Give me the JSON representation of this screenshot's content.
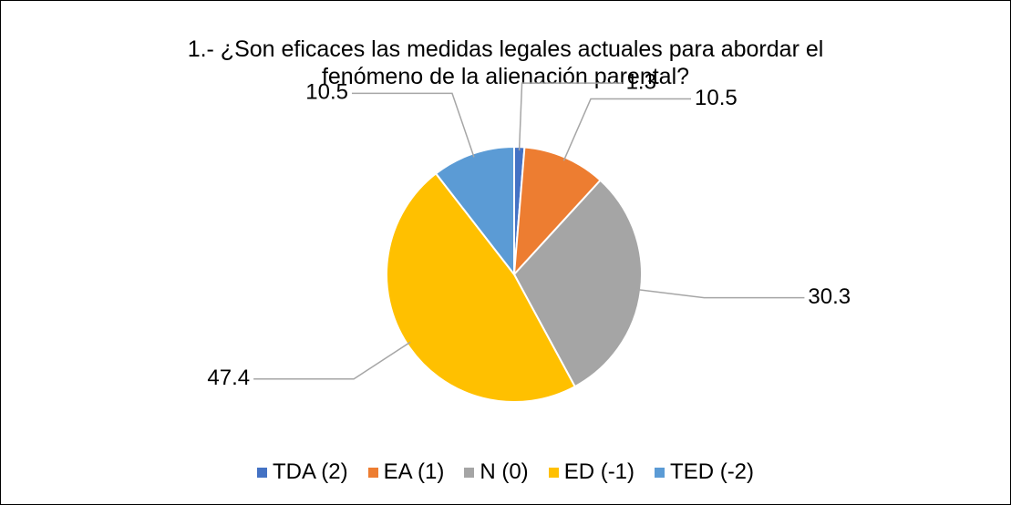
{
  "chart_data": {
    "type": "pie",
    "title": "1.- ¿Son eficaces las medidas legales actuales para abordar el fenómeno de la alienación parental?",
    "categories": [
      "TDA (2)",
      "EA (1)",
      "N (0)",
      "ED (-1)",
      "TED (-2)"
    ],
    "values": [
      1.3,
      10.5,
      30.3,
      47.4,
      10.5
    ],
    "colors": [
      "#4472c4",
      "#ed7d31",
      "#a5a5a5",
      "#ffc000",
      "#5b9bd5"
    ],
    "legend": "bottom"
  }
}
